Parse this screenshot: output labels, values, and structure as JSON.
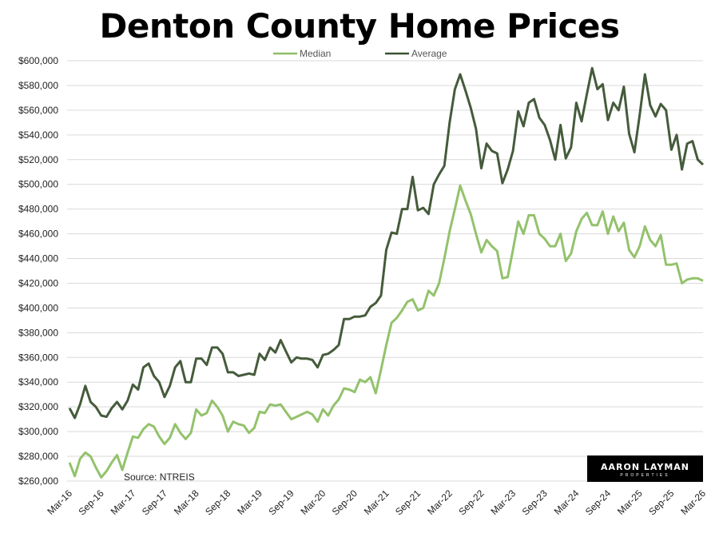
{
  "chart_data": {
    "type": "line",
    "title": "Denton County Home Prices",
    "xlabel": "",
    "ylabel": "",
    "ylim": [
      260000,
      600000
    ],
    "ytick_step": 20000,
    "grid": true,
    "legend_placement": "top-center",
    "x_start": "Mar-16",
    "x_end": "Mar-26",
    "x_tick_labels": [
      "Mar-16",
      "Sep-16",
      "Mar-17",
      "Sep-17",
      "Mar-18",
      "Sep-18",
      "Mar-19",
      "Sep-19",
      "Mar-20",
      "Sep-20",
      "Mar-21",
      "Sep-21",
      "Mar-22",
      "Sep-22",
      "Mar-23",
      "Sep-23",
      "Mar-24",
      "Sep-24",
      "Mar-25",
      "Sep-25",
      "Mar-26"
    ],
    "y_tick_labels": [
      "$260,000",
      "$280,000",
      "$300,000",
      "$320,000",
      "$340,000",
      "$360,000",
      "$380,000",
      "$400,000",
      "$420,000",
      "$440,000",
      "$460,000",
      "$480,000",
      "$500,000",
      "$520,000",
      "$540,000",
      "$560,000",
      "$580,000",
      "$600,000"
    ],
    "annotation": "Source: NTREIS",
    "series": [
      {
        "name": "Median",
        "color": "#8dbf64",
        "values": [
          275,
          264,
          278,
          283,
          280,
          271,
          263,
          268,
          275,
          281,
          269,
          283,
          296,
          295,
          302,
          306,
          304,
          296,
          290,
          295,
          306,
          299,
          294,
          299,
          318,
          313,
          315,
          325,
          320,
          313,
          300,
          308,
          306,
          305,
          299,
          303,
          316,
          315,
          322,
          321,
          322,
          316,
          310,
          312,
          314,
          316,
          314,
          308,
          318,
          313,
          321,
          326,
          335,
          334,
          332,
          342,
          340,
          344,
          331,
          350,
          370,
          388,
          392,
          398,
          405,
          407,
          398,
          400,
          414,
          410,
          420,
          440,
          462,
          480,
          499,
          487,
          476,
          460,
          445,
          455,
          450,
          446,
          424,
          425,
          447,
          470,
          460,
          475,
          475,
          460,
          456,
          450,
          450,
          460,
          438,
          444,
          462,
          472,
          477,
          467,
          467,
          478,
          460,
          474,
          462,
          469,
          447,
          441,
          450,
          466,
          455,
          450,
          459,
          435,
          435,
          436,
          420,
          423,
          424,
          424,
          422
        ]
      },
      {
        "name": "Average",
        "color": "#3b5230",
        "values": [
          319,
          311,
          322,
          337,
          324,
          320,
          313,
          312,
          319,
          324,
          318,
          325,
          338,
          334,
          352,
          355,
          345,
          340,
          328,
          337,
          352,
          357,
          340,
          340,
          359,
          359,
          354,
          368,
          368,
          363,
          348,
          348,
          345,
          346,
          347,
          346,
          363,
          358,
          368,
          364,
          374,
          365,
          356,
          360,
          359,
          359,
          358,
          352,
          362,
          363,
          366,
          370,
          391,
          391,
          393,
          393,
          394,
          401,
          404,
          410,
          447,
          461,
          460,
          480,
          480,
          506,
          479,
          481,
          476,
          500,
          508,
          515,
          550,
          577,
          589,
          576,
          562,
          545,
          513,
          533,
          527,
          525,
          501,
          512,
          527,
          559,
          547,
          566,
          569,
          554,
          548,
          536,
          520,
          548,
          521,
          530,
          566,
          551,
          573,
          594,
          577,
          581,
          552,
          566,
          560,
          579,
          541,
          526,
          556,
          589,
          564,
          555,
          565,
          560,
          528,
          540,
          512,
          533,
          535,
          520,
          516
        ]
      }
    ],
    "value_unit_multiplier": 1000
  },
  "logo": {
    "line1": "AARON LAYMAN",
    "line2": "PROPERTIES"
  }
}
